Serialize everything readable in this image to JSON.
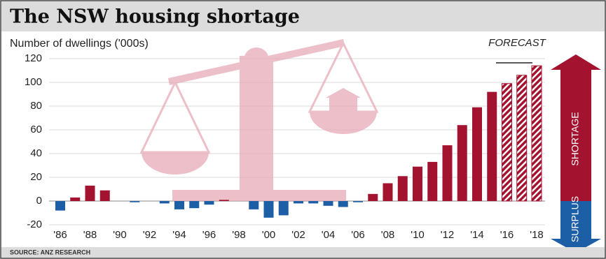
{
  "chart_data": {
    "type": "bar",
    "title": "The NSW housing shortage",
    "y_label": "Number of dwellings ('000s)",
    "categories": [
      "'86",
      null,
      "'88",
      null,
      "'90",
      null,
      "'92",
      null,
      "'94",
      null,
      "'96",
      null,
      "'98",
      null,
      "'00",
      null,
      "'02",
      null,
      "'04",
      null,
      "'06",
      null,
      "'08",
      null,
      "'10",
      null,
      "'12",
      null,
      "'14",
      null,
      "'16",
      null,
      "'18"
    ],
    "values": [
      -8,
      3,
      13,
      9,
      0,
      -1,
      0,
      -2,
      -7,
      -6,
      -3,
      1,
      0,
      -7,
      -14,
      -12,
      -2,
      -2,
      -4,
      -5,
      -1,
      6,
      15,
      21,
      29,
      33,
      47,
      64,
      79,
      92,
      99,
      106,
      114
    ],
    "positive_color": "#a3122e",
    "negative_color": "#1d5fa6",
    "forecast_label": "FORECAST",
    "forecast_indices": [
      30,
      31,
      32
    ],
    "ylim": [
      -20,
      120
    ],
    "yticks": [
      -20,
      0,
      20,
      40,
      60,
      80,
      100,
      120
    ],
    "grid": true,
    "arrow_up_label": "SHORTAGE",
    "arrow_down_label": "SURPLUS",
    "source": "SOURCE: ANZ RESEARCH"
  }
}
